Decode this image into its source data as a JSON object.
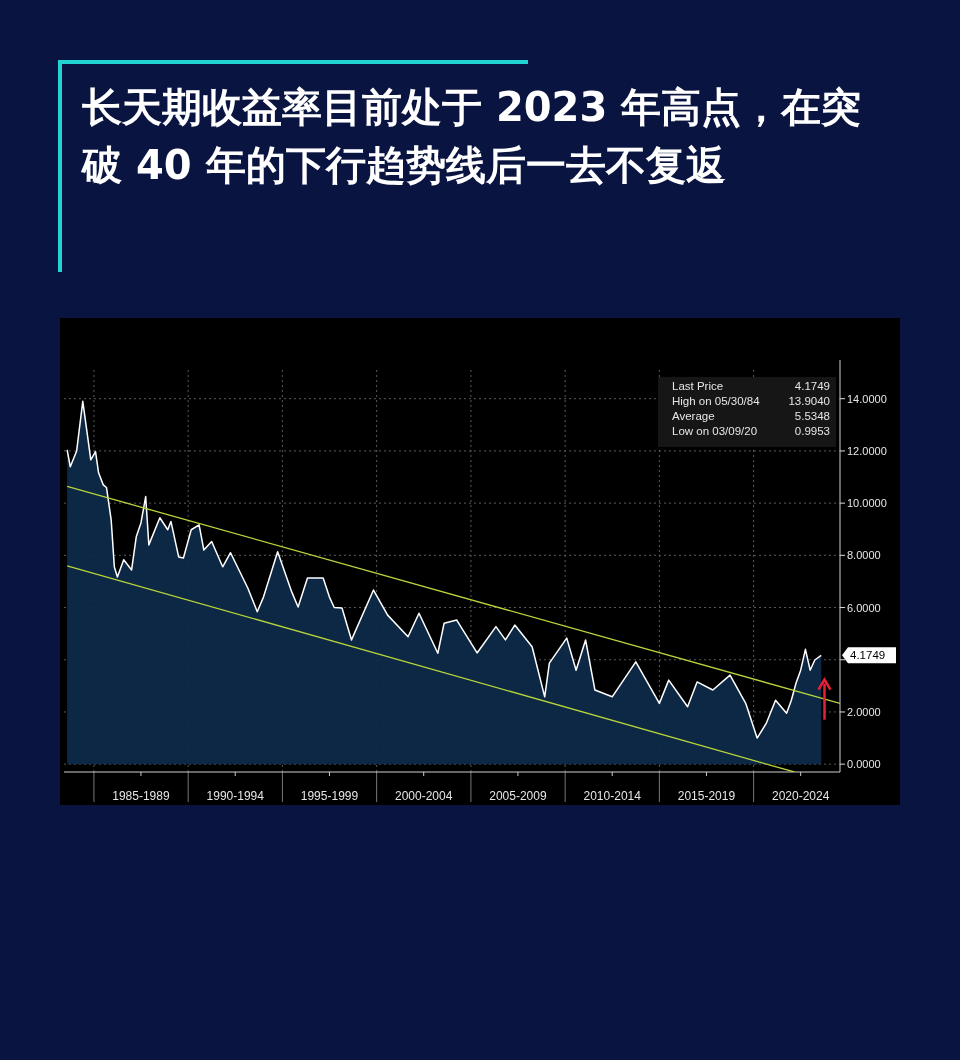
{
  "chart_data": {
    "type": "line",
    "title": "长天期收益率目前处于 2023 年高点，在突破 40 年的下行趋势线后一去不复返",
    "series": [
      {
        "type": "area",
        "color": "#ffffff",
        "x": [
          "1983-08",
          "1983-10",
          "1984-02",
          "1984-05-30",
          "1984-09",
          "1984-11",
          "1985-02",
          "1985-04",
          "1985-07",
          "1985-09",
          "1985-12",
          "1986-02",
          "1986-04",
          "1986-08",
          "1987-01",
          "1987-04",
          "1987-07",
          "1987-10",
          "1987-12",
          "1988-07",
          "1988-12",
          "1989-02",
          "1989-07",
          "1989-10",
          "1990-03",
          "1990-08",
          "1990-11",
          "1991-04",
          "1991-11",
          "1992-04",
          "1993-03",
          "1993-09",
          "1994-01",
          "1994-10",
          "1995-07",
          "1995-11",
          "1996-05",
          "1997-03",
          "1997-07",
          "1997-10",
          "1998-03",
          "1998-09",
          "1999-11",
          "2000-08",
          "2001-09",
          "2002-04",
          "2003-04",
          "2003-08",
          "2004-04",
          "2005-05",
          "2006-05",
          "2006-11",
          "2007-05",
          "2008-04",
          "2008-12",
          "2009-03",
          "2010-02",
          "2010-08",
          "2011-02",
          "2011-08",
          "2012-07",
          "2013-10",
          "2015-01",
          "2015-07",
          "2016-07",
          "2017-01",
          "2017-11",
          "2018-10",
          "2019-08",
          "2020-03-09",
          "2020-09",
          "2021-03",
          "2021-10",
          "2022-01",
          "2022-04",
          "2022-07",
          "2022-10",
          "2023-01",
          "2023-04",
          "2023-08-03"
        ],
        "values": [
          12.04,
          11.39,
          12.0,
          13.9,
          12.55,
          11.66,
          11.97,
          11.16,
          10.7,
          10.6,
          9.36,
          7.55,
          7.17,
          7.83,
          7.44,
          8.71,
          9.24,
          10.25,
          8.4,
          9.44,
          8.98,
          9.3,
          7.94,
          7.9,
          8.98,
          9.17,
          8.2,
          8.53,
          7.56,
          8.1,
          6.75,
          5.84,
          6.41,
          8.14,
          6.6,
          6.02,
          7.13,
          7.13,
          6.4,
          6.0,
          5.98,
          4.76,
          6.67,
          5.71,
          4.88,
          5.78,
          4.25,
          5.4,
          5.52,
          4.26,
          5.27,
          4.76,
          5.33,
          4.5,
          2.58,
          3.87,
          4.83,
          3.6,
          4.76,
          2.84,
          2.58,
          3.92,
          2.33,
          3.22,
          2.2,
          3.15,
          2.84,
          3.41,
          2.33,
          1.0,
          1.56,
          2.45,
          1.95,
          2.45,
          3.1,
          3.6,
          4.4,
          3.6,
          3.99,
          4.17
        ]
      },
      {
        "color": "#b8d43c",
        "x": [
          "1983-08",
          "2024-08"
        ],
        "values": [
          10.64,
          2.33
        ]
      },
      {
        "color": "#b8d43c",
        "x": [
          "1983-08",
          "2022-03"
        ],
        "values": [
          7.6,
          -0.3
        ]
      }
    ],
    "xlim": [
      "1983-06",
      "2024-08"
    ],
    "xticks": [
      {
        "value": "1985",
        "label": null
      },
      {
        "value": "1990",
        "label": null
      },
      {
        "value": "1995",
        "label": null
      },
      {
        "value": "2000",
        "label": null
      },
      {
        "value": "2005",
        "label": null
      },
      {
        "value": "2010",
        "label": null
      },
      {
        "value": "2015",
        "label": null
      },
      {
        "value": "2020",
        "label": null
      },
      {
        "value": "1987-07",
        "label": "1985-1989"
      },
      {
        "value": "1992-07",
        "label": "1990-1994"
      },
      {
        "value": "1997-07",
        "label": "1995-1999"
      },
      {
        "value": "2002-07",
        "label": "2000-2004"
      },
      {
        "value": "2007-07",
        "label": "2005-2009"
      },
      {
        "value": "2012-07",
        "label": "2010-2014"
      },
      {
        "value": "2017-07",
        "label": "2015-2019"
      },
      {
        "value": "2022-07",
        "label": "2020-2024"
      }
    ],
    "ylim": [
      -0.3,
      15.1
    ],
    "yticks": [
      {
        "value": 0,
        "label": "0.0000"
      },
      {
        "value": 2,
        "label": "2.0000"
      },
      {
        "value": 4,
        "label": null
      },
      {
        "value": 6,
        "label": "6.0000"
      },
      {
        "value": 8,
        "label": "8.0000"
      },
      {
        "value": 10,
        "label": "10.0000"
      },
      {
        "value": 12,
        "label": "12.0000"
      },
      {
        "value": 14,
        "label": "14.0000"
      }
    ],
    "grid": true,
    "annotations": [
      "Last Price 4.1749",
      "High on 05/30/84 13.9040",
      "Average 5.5348",
      "Low on 03/09/20 0.9953",
      {
        "text": "4.1749",
        "x": "2023-08-03",
        "y": 4.1749
      }
    ]
  }
}
